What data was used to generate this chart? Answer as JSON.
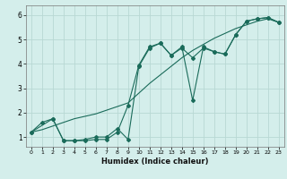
{
  "xlabel": "Humidex (Indice chaleur)",
  "xlim": [
    -0.5,
    23.5
  ],
  "ylim": [
    0.6,
    6.4
  ],
  "xticks": [
    0,
    1,
    2,
    3,
    4,
    5,
    6,
    7,
    8,
    9,
    10,
    11,
    12,
    13,
    14,
    15,
    16,
    17,
    18,
    19,
    20,
    21,
    22,
    23
  ],
  "yticks": [
    1,
    2,
    3,
    4,
    5,
    6
  ],
  "bg_color": "#d4eeeb",
  "grid_color": "#b8d8d4",
  "line_color": "#1a6b5a",
  "smooth_x": [
    0,
    1,
    2,
    3,
    4,
    5,
    6,
    7,
    8,
    9,
    10,
    11,
    12,
    13,
    14,
    15,
    16,
    17,
    18,
    19,
    20,
    21,
    22,
    23
  ],
  "smooth_y": [
    1.2,
    1.3,
    1.45,
    1.6,
    1.75,
    1.85,
    1.95,
    2.1,
    2.25,
    2.4,
    2.8,
    3.2,
    3.55,
    3.9,
    4.25,
    4.55,
    4.8,
    5.05,
    5.25,
    5.45,
    5.6,
    5.75,
    5.85,
    5.7
  ],
  "zigzag1_x": [
    0,
    1,
    2,
    3,
    4,
    5,
    6,
    7,
    8,
    9,
    10,
    11,
    12,
    13,
    14,
    15,
    16,
    17,
    18,
    19,
    20,
    21,
    22,
    23
  ],
  "zigzag1_y": [
    1.2,
    1.6,
    1.75,
    0.85,
    0.85,
    0.85,
    0.9,
    0.9,
    1.2,
    2.3,
    3.95,
    4.7,
    4.85,
    4.35,
    4.65,
    4.25,
    4.65,
    4.5,
    4.4,
    5.2,
    5.75,
    5.85,
    5.9,
    5.7
  ],
  "zigzag2_x": [
    0,
    2,
    3,
    4,
    5,
    6,
    7,
    8,
    9,
    10,
    11,
    12,
    13,
    14,
    15,
    16,
    17,
    18,
    19,
    20,
    21,
    22,
    23
  ],
  "zigzag2_y": [
    1.2,
    1.75,
    0.85,
    0.85,
    0.9,
    1.0,
    1.0,
    1.35,
    0.9,
    3.9,
    4.65,
    4.85,
    4.35,
    4.7,
    2.5,
    4.7,
    4.5,
    4.4,
    5.2,
    5.75,
    5.85,
    5.9,
    5.7
  ]
}
